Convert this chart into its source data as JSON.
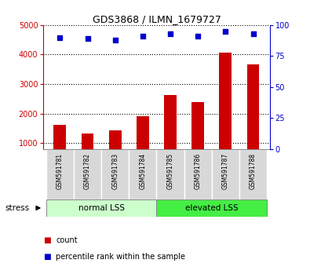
{
  "title": "GDS3868 / ILMN_1679727",
  "samples": [
    "GSM591781",
    "GSM591782",
    "GSM591783",
    "GSM591784",
    "GSM591785",
    "GSM591786",
    "GSM591787",
    "GSM591788"
  ],
  "counts": [
    1620,
    1330,
    1420,
    1910,
    2620,
    2390,
    4060,
    3670
  ],
  "percentiles": [
    90,
    89,
    88,
    91,
    93,
    91,
    95,
    93
  ],
  "bar_color": "#cc0000",
  "dot_color": "#0000cc",
  "ylim_left": [
    800,
    5000
  ],
  "yticks_left": [
    1000,
    2000,
    3000,
    4000,
    5000
  ],
  "ylim_right": [
    0,
    100
  ],
  "yticks_right": [
    0,
    25,
    50,
    75,
    100
  ],
  "group_normal_label": "normal LSS",
  "group_elevated_label": "elevated LSS",
  "group_normal_color": "#ccffcc",
  "group_elevated_color": "#44ee44",
  "stress_label": "stress",
  "legend_count_label": "count",
  "legend_pct_label": "percentile rank within the sample",
  "sample_bg_color": "#d8d8d8",
  "plot_bg": "#ffffff",
  "bar_width": 0.45
}
